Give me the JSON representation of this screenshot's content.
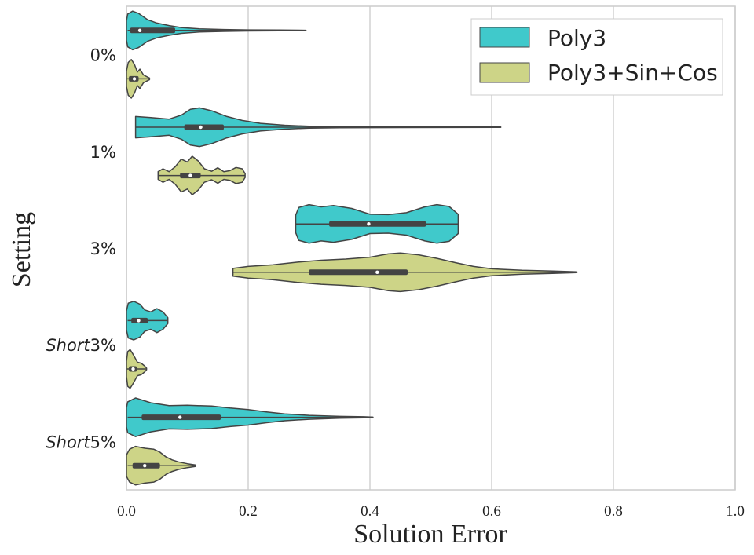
{
  "chart_data": {
    "type": "violin",
    "orientation": "horizontal",
    "xlabel": "Solution Error",
    "ylabel": "Setting",
    "xlim": [
      0.0,
      1.0
    ],
    "x_ticks": [
      "0.0",
      "0.2",
      "0.4",
      "0.6",
      "0.8",
      "1.0"
    ],
    "grid": "vertical",
    "legend_position": "top-right",
    "categories": [
      {
        "label_prefix": "",
        "label_suffix": "0%"
      },
      {
        "label_prefix": "",
        "label_suffix": "1%"
      },
      {
        "label_prefix": "",
        "label_suffix": "3%"
      },
      {
        "label_prefix": "Short",
        "label_suffix": "3%"
      },
      {
        "label_prefix": "Short",
        "label_suffix": "5%"
      }
    ],
    "series": [
      {
        "name": "Poly3",
        "color": "#40c9cb",
        "violins": [
          {
            "min": 0.002,
            "q1": 0.006,
            "median": 0.022,
            "q3": 0.08,
            "max": 0.295,
            "profile": [
              [
                0.0,
                0.5
              ],
              [
                0.002,
                0.85
              ],
              [
                0.01,
                1.0
              ],
              [
                0.02,
                0.88
              ],
              [
                0.035,
                0.55
              ],
              [
                0.05,
                0.38
              ],
              [
                0.07,
                0.25
              ],
              [
                0.09,
                0.15
              ],
              [
                0.12,
                0.08
              ],
              [
                0.16,
                0.05
              ],
              [
                0.2,
                0.03
              ],
              [
                0.25,
                0.02
              ],
              [
                0.295,
                0.01
              ]
            ]
          },
          {
            "min": 0.015,
            "q1": 0.095,
            "median": 0.122,
            "q3": 0.16,
            "max": 0.615,
            "profile": [
              [
                0.015,
                0.55
              ],
              [
                0.04,
                0.5
              ],
              [
                0.07,
                0.42
              ],
              [
                0.09,
                0.62
              ],
              [
                0.105,
                0.92
              ],
              [
                0.12,
                1.0
              ],
              [
                0.14,
                0.85
              ],
              [
                0.165,
                0.55
              ],
              [
                0.19,
                0.35
              ],
              [
                0.22,
                0.2
              ],
              [
                0.26,
                0.1
              ],
              [
                0.3,
                0.05
              ],
              [
                0.35,
                0.03
              ],
              [
                0.45,
                0.02
              ],
              [
                0.615,
                0.01
              ]
            ]
          },
          {
            "min": 0.278,
            "q1": 0.333,
            "median": 0.398,
            "q3": 0.492,
            "max": 0.545,
            "profile": [
              [
                0.278,
                0.45
              ],
              [
                0.283,
                0.85
              ],
              [
                0.3,
                1.0
              ],
              [
                0.32,
                0.88
              ],
              [
                0.34,
                0.95
              ],
              [
                0.37,
                0.8
              ],
              [
                0.4,
                0.5
              ],
              [
                0.43,
                0.48
              ],
              [
                0.46,
                0.58
              ],
              [
                0.49,
                0.88
              ],
              [
                0.51,
                1.0
              ],
              [
                0.53,
                0.9
              ],
              [
                0.545,
                0.5
              ]
            ]
          },
          {
            "min": 0.002,
            "q1": 0.008,
            "median": 0.02,
            "q3": 0.035,
            "max": 0.068,
            "profile": [
              [
                0.0,
                0.5
              ],
              [
                0.003,
                0.9
              ],
              [
                0.012,
                1.0
              ],
              [
                0.022,
                0.85
              ],
              [
                0.03,
                0.55
              ],
              [
                0.04,
                0.45
              ],
              [
                0.05,
                0.62
              ],
              [
                0.06,
                0.45
              ],
              [
                0.068,
                0.15
              ]
            ]
          },
          {
            "min": 0.002,
            "q1": 0.025,
            "median": 0.088,
            "q3": 0.155,
            "max": 0.405,
            "profile": [
              [
                0.0,
                0.5
              ],
              [
                0.002,
                0.8
              ],
              [
                0.015,
                1.0
              ],
              [
                0.04,
                0.75
              ],
              [
                0.07,
                0.6
              ],
              [
                0.1,
                0.62
              ],
              [
                0.14,
                0.58
              ],
              [
                0.17,
                0.48
              ],
              [
                0.2,
                0.4
              ],
              [
                0.23,
                0.28
              ],
              [
                0.26,
                0.18
              ],
              [
                0.3,
                0.1
              ],
              [
                0.35,
                0.05
              ],
              [
                0.39,
                0.03
              ],
              [
                0.405,
                0.01
              ]
            ]
          }
        ]
      },
      {
        "name": "Poly3+Sin+Cos",
        "color": "#cdd487",
        "violins": [
          {
            "min": 0.001,
            "q1": 0.004,
            "median": 0.013,
            "q3": 0.02,
            "max": 0.038,
            "profile": [
              [
                0.0,
                0.4
              ],
              [
                0.003,
                0.85
              ],
              [
                0.008,
                1.0
              ],
              [
                0.013,
                0.75
              ],
              [
                0.018,
                0.35
              ],
              [
                0.022,
                0.5
              ],
              [
                0.028,
                0.2
              ],
              [
                0.038,
                0.04
              ]
            ]
          },
          {
            "min": 0.052,
            "q1": 0.088,
            "median": 0.105,
            "q3": 0.122,
            "max": 0.195,
            "profile": [
              [
                0.052,
                0.2
              ],
              [
                0.06,
                0.35
              ],
              [
                0.07,
                0.2
              ],
              [
                0.08,
                0.45
              ],
              [
                0.09,
                0.85
              ],
              [
                0.1,
                0.7
              ],
              [
                0.108,
                1.0
              ],
              [
                0.118,
                0.75
              ],
              [
                0.128,
                0.35
              ],
              [
                0.14,
                0.22
              ],
              [
                0.15,
                0.4
              ],
              [
                0.16,
                0.2
              ],
              [
                0.17,
                0.25
              ],
              [
                0.18,
                0.42
              ],
              [
                0.19,
                0.35
              ],
              [
                0.195,
                0.1
              ]
            ]
          },
          {
            "min": 0.175,
            "q1": 0.3,
            "median": 0.412,
            "q3": 0.462,
            "max": 0.74,
            "profile": [
              [
                0.175,
                0.2
              ],
              [
                0.2,
                0.3
              ],
              [
                0.24,
                0.38
              ],
              [
                0.28,
                0.52
              ],
              [
                0.32,
                0.62
              ],
              [
                0.36,
                0.68
              ],
              [
                0.4,
                0.78
              ],
              [
                0.43,
                0.95
              ],
              [
                0.45,
                1.0
              ],
              [
                0.48,
                0.9
              ],
              [
                0.51,
                0.72
              ],
              [
                0.54,
                0.5
              ],
              [
                0.57,
                0.3
              ],
              [
                0.6,
                0.18
              ],
              [
                0.65,
                0.1
              ],
              [
                0.7,
                0.06
              ],
              [
                0.74,
                0.02
              ]
            ]
          },
          {
            "min": 0.001,
            "q1": 0.004,
            "median": 0.011,
            "q3": 0.017,
            "max": 0.033,
            "profile": [
              [
                0.0,
                0.4
              ],
              [
                0.002,
                0.9
              ],
              [
                0.006,
                1.0
              ],
              [
                0.012,
                0.7
              ],
              [
                0.018,
                0.35
              ],
              [
                0.024,
                0.3
              ],
              [
                0.03,
                0.15
              ],
              [
                0.033,
                0.04
              ]
            ]
          },
          {
            "min": 0.002,
            "q1": 0.01,
            "median": 0.03,
            "q3": 0.055,
            "max": 0.113,
            "profile": [
              [
                0.0,
                0.55
              ],
              [
                0.005,
                0.85
              ],
              [
                0.015,
                1.0
              ],
              [
                0.03,
                0.9
              ],
              [
                0.045,
                0.85
              ],
              [
                0.055,
                0.7
              ],
              [
                0.065,
                0.45
              ],
              [
                0.075,
                0.3
              ],
              [
                0.085,
                0.2
              ],
              [
                0.1,
                0.1
              ],
              [
                0.113,
                0.04
              ]
            ]
          }
        ]
      }
    ]
  }
}
